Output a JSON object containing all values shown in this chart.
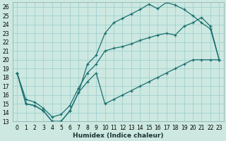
{
  "xlabel": "Humidex (Indice chaleur)",
  "background_color": "#cce8e0",
  "grid_color": "#99cccc",
  "line_color": "#1a7070",
  "xlim": [
    -0.5,
    23.5
  ],
  "ylim": [
    13,
    26.5
  ],
  "yticks": [
    13,
    14,
    15,
    16,
    17,
    18,
    19,
    20,
    21,
    22,
    23,
    24,
    25,
    26
  ],
  "xticks": [
    0,
    1,
    2,
    3,
    4,
    5,
    6,
    7,
    8,
    9,
    10,
    11,
    12,
    13,
    14,
    15,
    16,
    17,
    18,
    19,
    20,
    21,
    22,
    23
  ],
  "line1_x": [
    0,
    1,
    2,
    3,
    4,
    5,
    6,
    7,
    8,
    9,
    10,
    11,
    12,
    13,
    14,
    15,
    16,
    17,
    18,
    19,
    20,
    21,
    22,
    23
  ],
  "line1_y": [
    18.5,
    15.0,
    14.8,
    14.2,
    13.0,
    13.0,
    14.2,
    16.3,
    17.5,
    18.5,
    15.0,
    15.5,
    16.0,
    16.5,
    17.0,
    17.5,
    18.0,
    18.5,
    19.0,
    19.5,
    20.0,
    20.0,
    20.0,
    20.0
  ],
  "line2_x": [
    0,
    1,
    2,
    3,
    4,
    5,
    6,
    7,
    8,
    9,
    10,
    11,
    12,
    13,
    14,
    15,
    16,
    17,
    18,
    19,
    20,
    21,
    22,
    23
  ],
  "line2_y": [
    18.5,
    15.0,
    14.8,
    14.2,
    13.0,
    13.0,
    14.2,
    16.3,
    19.5,
    20.5,
    23.0,
    24.2,
    24.7,
    25.2,
    25.7,
    26.3,
    25.8,
    26.5,
    26.2,
    25.7,
    25.0,
    24.2,
    23.5,
    20.0
  ],
  "line3_x": [
    0,
    1,
    2,
    3,
    4,
    5,
    6,
    7,
    8,
    9,
    10,
    11,
    12,
    13,
    14,
    15,
    16,
    17,
    18,
    19,
    20,
    21,
    22,
    23
  ],
  "line3_y": [
    18.5,
    15.5,
    15.2,
    14.5,
    13.5,
    13.8,
    14.8,
    16.8,
    18.5,
    19.5,
    21.0,
    21.3,
    21.5,
    21.8,
    22.2,
    22.5,
    22.8,
    23.0,
    22.8,
    23.8,
    24.2,
    24.8,
    23.8,
    20.0
  ]
}
